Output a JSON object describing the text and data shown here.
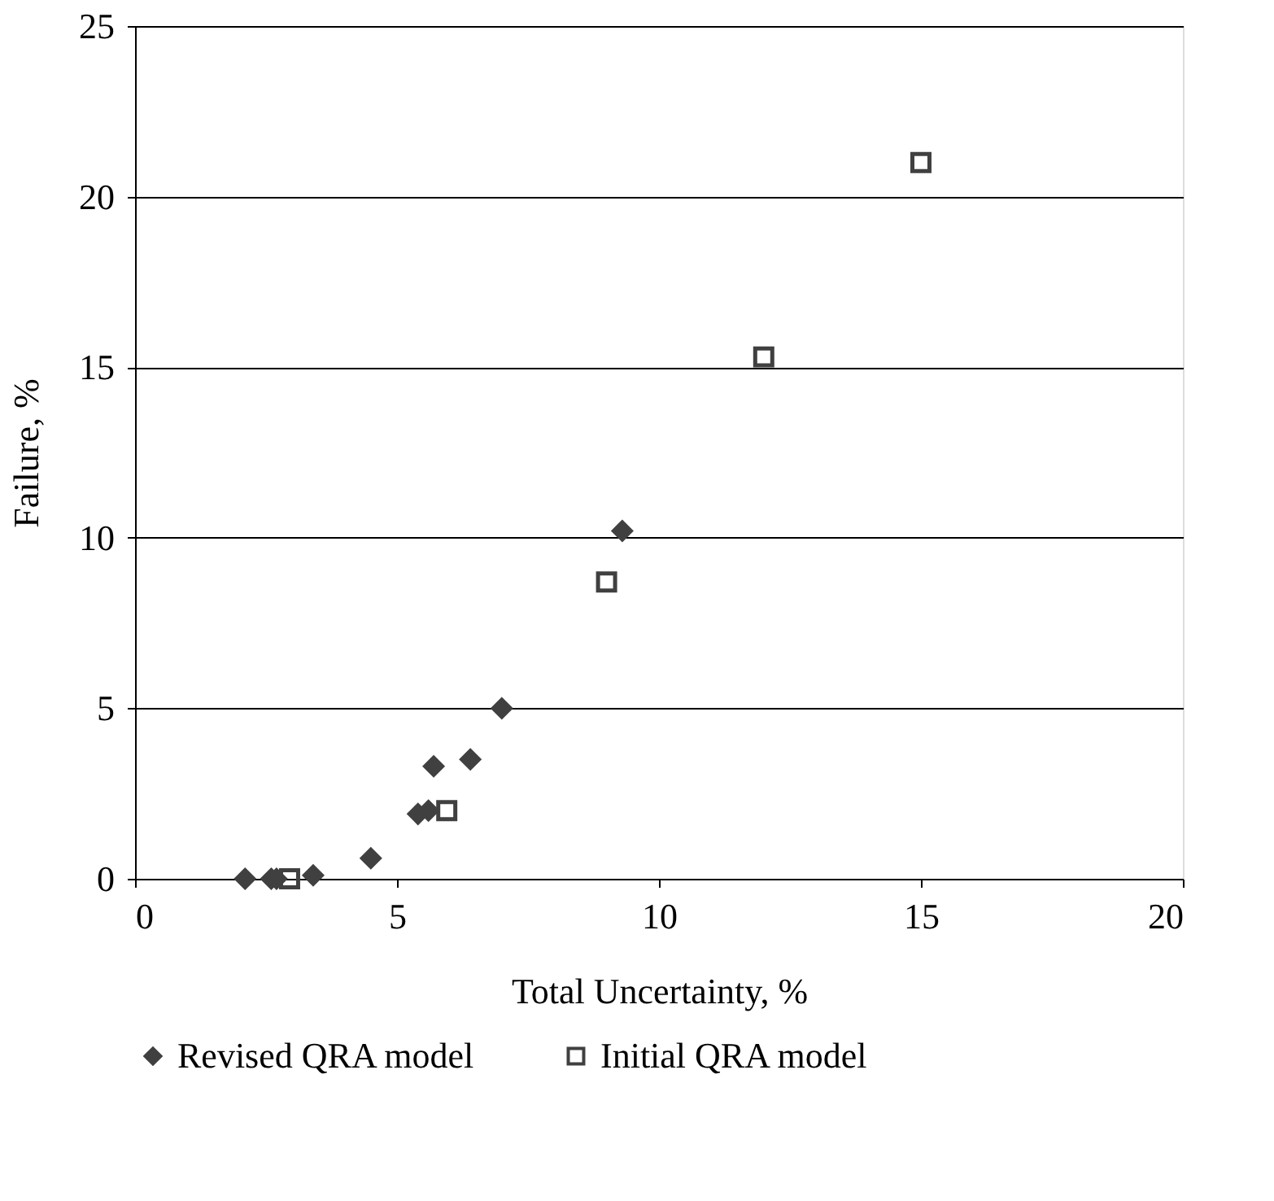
{
  "chart_data": {
    "type": "scatter",
    "xlabel": "Total Uncertainty, %",
    "ylabel": "Failure, %",
    "xlim": [
      0,
      20
    ],
    "xticks": [
      0,
      5,
      10,
      15,
      20
    ],
    "ylim": [
      0,
      25
    ],
    "yticks": [
      0,
      5,
      10,
      15,
      20,
      25
    ],
    "grid": "y",
    "legend": "bottom",
    "series": [
      {
        "name": "Revised QRA model",
        "color": "#404040",
        "marker": "diamond",
        "x": [
          2.1,
          2.6,
          2.7,
          3.4,
          4.5,
          5.4,
          5.6,
          5.7,
          6.4,
          7.0,
          9.3
        ],
        "values": [
          0,
          0,
          0,
          0.1,
          0.6,
          1.9,
          2.0,
          3.3,
          3.5,
          5.0,
          10.2
        ]
      },
      {
        "name": "Initial QRA model",
        "color": "#404040",
        "marker": "square",
        "x": [
          2.95,
          5.95,
          9.0,
          12.0,
          15.0
        ],
        "values": [
          0,
          2.0,
          8.7,
          15.3,
          21.0
        ]
      }
    ]
  }
}
